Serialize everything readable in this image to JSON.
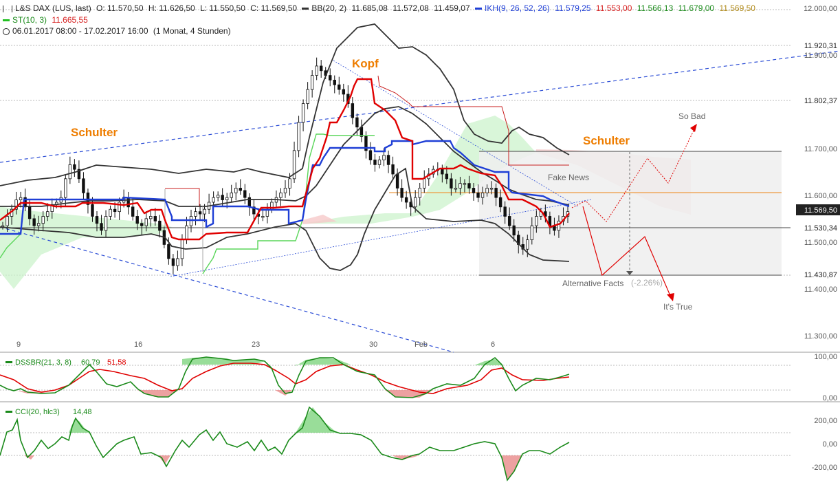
{
  "header": {
    "instrument": "L&S DAX (LUS, last)",
    "open": "O: 11.570,50",
    "high": "H: 11.626,50",
    "low": "L: 11.550,50",
    "close": "C: 11.569,50",
    "bb_label": "BB(20, 2)",
    "bb_v1": "11.685,08",
    "bb_v2": "11.572,08",
    "bb_v3": "11.459,07",
    "ikh_label": "IKH(9, 26, 52, 26)",
    "ikh_v1": "11.579,25",
    "ikh_v2": "11.553,00",
    "ikh_v3": "11.566,13",
    "ikh_v4": "11.679,00",
    "ikh_v5": "11.569,50",
    "st_label": "ST(10, 3)",
    "st_value": "11.665,55",
    "range": "06.01.2017 08:00 - 17.02.2017 16:00",
    "period": "(1 Monat, 4 Stunden)"
  },
  "icons": [
    "candlestick-icon",
    "clock-icon"
  ],
  "colors": {
    "candle": "#111111",
    "bollinger": "#333333",
    "kijun": "#1f3fd6",
    "tenkan": "#e00000",
    "chikou": "#5ad65a",
    "cloud": "#c9f2c9",
    "cloud_bear": "#f6c9c9",
    "trend": "#2e4fd6",
    "annotation": "#ee7d00",
    "osc_green": "#1a8a1a",
    "osc_red": "#e00000"
  },
  "annotations": {
    "left_shoulder": "Schulter",
    "head": "Kopf",
    "right_shoulder": "Schulter",
    "fake_news": "Fake News",
    "so_bad": "So Bad",
    "alternative_facts": "Alternative Facts",
    "its_true": "It's True",
    "target_pct": "(-2.26%)"
  },
  "chart_data": [
    {
      "type": "candlestick",
      "x_ticks": [
        "9",
        "16",
        "23",
        "30",
        "Feb",
        "6"
      ],
      "y_ticks": [
        "12.000,00",
        "11.900,00",
        "11.700,00",
        "11.600,00",
        "11.500,00",
        "11.400,00",
        "11.300,00"
      ],
      "price_flags": [
        "11.920,31",
        "11.802,37",
        "11.569,50",
        "11.530,34",
        "11.430,87"
      ],
      "ylim": [
        11240,
        12000
      ],
      "close_series": [
        11540,
        11560,
        11575,
        11595,
        11600,
        11580,
        11555,
        11540,
        11545,
        11560,
        11570,
        11585,
        11590,
        11600,
        11640,
        11670,
        11660,
        11640,
        11610,
        11585,
        11560,
        11545,
        11530,
        11560,
        11575,
        11570,
        11590,
        11600,
        11580,
        11560,
        11545,
        11540,
        11555,
        11560,
        11550,
        11530,
        11500,
        11470,
        11455,
        11470,
        11510,
        11540,
        11560,
        11570,
        11565,
        11575,
        11590,
        11600,
        11605,
        11595,
        11600,
        11610,
        11620,
        11615,
        11600,
        11580,
        11565,
        11560,
        11560,
        11575,
        11590,
        11600,
        11610,
        11620,
        11640,
        11700,
        11760,
        11800,
        11830,
        11860,
        11880,
        11870,
        11860,
        11850,
        11840,
        11830,
        11820,
        11800,
        11770,
        11750,
        11730,
        11700,
        11680,
        11670,
        11680,
        11690,
        11670,
        11650,
        11620,
        11600,
        11590,
        11580,
        11600,
        11620,
        11640,
        11650,
        11660,
        11660,
        11650,
        11640,
        11620,
        11620,
        11630,
        11630,
        11620,
        11610,
        11600,
        11610,
        11620,
        11620,
        11600,
        11580,
        11560,
        11540,
        11520,
        11500,
        11490,
        11510,
        11540,
        11560,
        11570,
        11560,
        11540,
        11530,
        11550,
        11560,
        11570
      ]
    },
    {
      "type": "line",
      "name": "DSSBR(21, 3, 8)",
      "values": [
        "60,79",
        "51,58"
      ],
      "y_ticks": [
        "100,00",
        "0,00"
      ],
      "ylim": [
        -5,
        105
      ]
    },
    {
      "type": "line",
      "name": "CCI(20, hlc3)",
      "values": [
        "14,48"
      ],
      "y_ticks": [
        "200,00",
        "0,00",
        "-200,00"
      ],
      "ylim": [
        -330,
        330
      ]
    }
  ]
}
